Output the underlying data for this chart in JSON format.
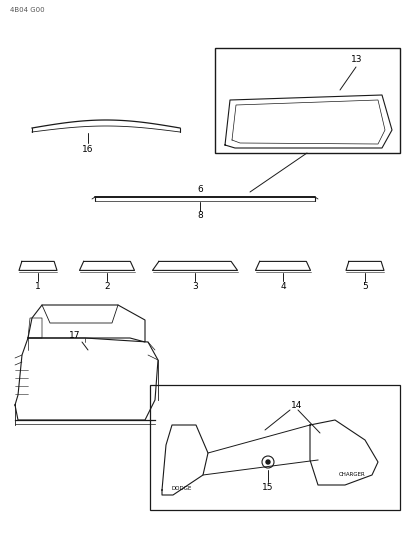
{
  "bg_color": "#ffffff",
  "line_color": "#1a1a1a",
  "fig_width": 4.08,
  "fig_height": 5.33,
  "dpi": 100,
  "header": "4B04 G00"
}
